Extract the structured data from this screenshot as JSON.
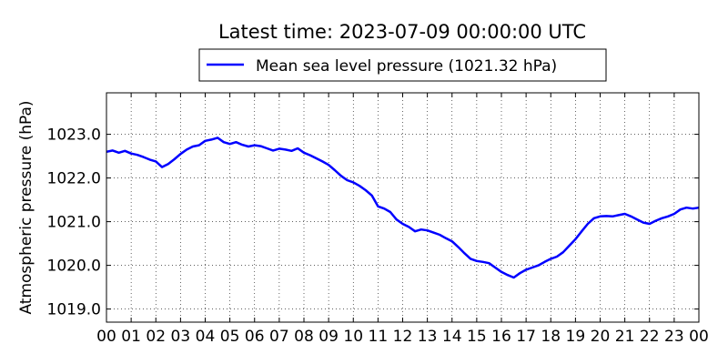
{
  "chart_data": {
    "type": "line",
    "title": "Latest time: 2023-07-09 00:00:00 UTC",
    "ylabel": "Atmospheric pressure (hPa)",
    "xlabel": "",
    "xlim": [
      0,
      24
    ],
    "ylim": [
      1018.7,
      1023.95
    ],
    "x_ticks": [
      "00",
      "01",
      "02",
      "03",
      "04",
      "05",
      "06",
      "07",
      "08",
      "09",
      "10",
      "11",
      "12",
      "13",
      "14",
      "15",
      "16",
      "17",
      "18",
      "19",
      "20",
      "21",
      "22",
      "23",
      "00"
    ],
    "y_ticks": [
      {
        "value": 1019.0,
        "label": "1019.0"
      },
      {
        "value": 1020.0,
        "label": "1020.0"
      },
      {
        "value": 1021.0,
        "label": "1021.0"
      },
      {
        "value": 1022.0,
        "label": "1022.0"
      },
      {
        "value": 1023.0,
        "label": "1023.0"
      }
    ],
    "grid": true,
    "legend_position": "top-center",
    "series": [
      {
        "name": "Mean sea level pressure (1021.32 hPa)",
        "color": "#0000ff",
        "x": [
          0,
          0.25,
          0.5,
          0.75,
          1.0,
          1.25,
          1.5,
          1.75,
          2.0,
          2.25,
          2.5,
          2.75,
          3.0,
          3.25,
          3.5,
          3.75,
          4.0,
          4.25,
          4.5,
          4.75,
          5.0,
          5.25,
          5.5,
          5.75,
          6.0,
          6.25,
          6.5,
          6.75,
          7.0,
          7.25,
          7.5,
          7.75,
          8.0,
          8.25,
          8.5,
          8.75,
          9.0,
          9.25,
          9.5,
          9.75,
          10.0,
          10.25,
          10.5,
          10.75,
          11.0,
          11.25,
          11.5,
          11.75,
          12.0,
          12.25,
          12.5,
          12.75,
          13.0,
          13.25,
          13.5,
          13.75,
          14.0,
          14.25,
          14.5,
          14.75,
          15.0,
          15.25,
          15.5,
          15.75,
          16.0,
          16.25,
          16.5,
          16.75,
          17.0,
          17.25,
          17.5,
          17.75,
          18.0,
          18.25,
          18.5,
          18.75,
          19.0,
          19.25,
          19.5,
          19.75,
          20.0,
          20.25,
          20.5,
          20.75,
          21.0,
          21.25,
          21.5,
          21.75,
          22.0,
          22.25,
          22.5,
          22.75,
          23.0,
          23.25,
          23.5,
          23.75,
          24.0
        ],
        "y": [
          1022.6,
          1022.63,
          1022.58,
          1022.62,
          1022.56,
          1022.53,
          1022.48,
          1022.42,
          1022.38,
          1022.25,
          1022.32,
          1022.43,
          1022.55,
          1022.65,
          1022.72,
          1022.75,
          1022.85,
          1022.88,
          1022.92,
          1022.82,
          1022.78,
          1022.82,
          1022.76,
          1022.72,
          1022.75,
          1022.73,
          1022.68,
          1022.63,
          1022.67,
          1022.65,
          1022.62,
          1022.68,
          1022.58,
          1022.52,
          1022.45,
          1022.38,
          1022.3,
          1022.18,
          1022.05,
          1021.95,
          1021.9,
          1021.82,
          1021.72,
          1021.6,
          1021.35,
          1021.3,
          1021.22,
          1021.05,
          1020.95,
          1020.88,
          1020.78,
          1020.82,
          1020.8,
          1020.75,
          1020.7,
          1020.62,
          1020.55,
          1020.42,
          1020.28,
          1020.15,
          1020.1,
          1020.08,
          1020.05,
          1019.95,
          1019.85,
          1019.78,
          1019.72,
          1019.82,
          1019.9,
          1019.95,
          1020.0,
          1020.08,
          1020.15,
          1020.2,
          1020.3,
          1020.45,
          1020.6,
          1020.78,
          1020.95,
          1021.08,
          1021.12,
          1021.13,
          1021.12,
          1021.15,
          1021.18,
          1021.12,
          1021.05,
          1020.98,
          1020.95,
          1021.02,
          1021.08,
          1021.12,
          1021.18,
          1021.28,
          1021.32,
          1021.3,
          1021.32
        ]
      }
    ]
  }
}
